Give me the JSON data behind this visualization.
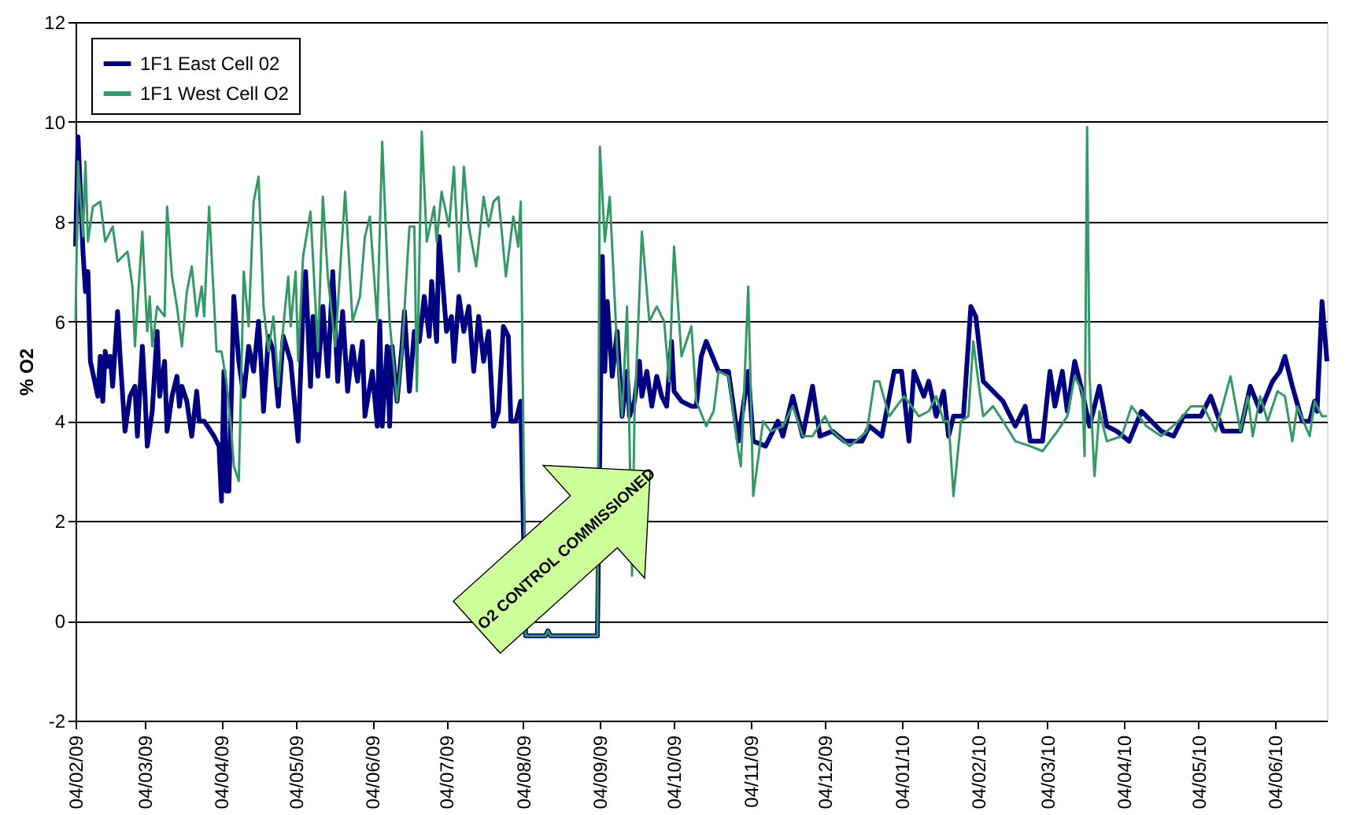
{
  "chart_data": {
    "type": "line",
    "ylabel": "% O2",
    "legend": "top left",
    "grid": "y",
    "line_style": "solid",
    "marker": "none",
    "xlim": [
      "2009-02-04",
      "2010-06-25"
    ],
    "xticks": [
      {
        "value": "2009-02-04",
        "label": "04/02/09"
      },
      {
        "value": "2009-03-04",
        "label": "04/03/09"
      },
      {
        "value": "2009-04-04",
        "label": "04/04/09"
      },
      {
        "value": "2009-05-04",
        "label": "04/05/09"
      },
      {
        "value": "2009-06-04",
        "label": "04/06/09"
      },
      {
        "value": "2009-07-04",
        "label": "04/07/09"
      },
      {
        "value": "2009-08-04",
        "label": "04/08/09"
      },
      {
        "value": "2009-09-04",
        "label": "04/09/09"
      },
      {
        "value": "2009-10-04",
        "label": "04/10/09"
      },
      {
        "value": "2009-11-04",
        "label": "04/11/09"
      },
      {
        "value": "2009-12-04",
        "label": "04/12/09"
      },
      {
        "value": "2010-01-04",
        "label": "04/01/10"
      },
      {
        "value": "2010-02-04",
        "label": "04/02/10"
      },
      {
        "value": "2010-03-04",
        "label": "04/03/10"
      },
      {
        "value": "2010-04-04",
        "label": "04/04/10"
      },
      {
        "value": "2010-05-04",
        "label": "04/05/10"
      },
      {
        "value": "2010-06-04",
        "label": "04/06/10"
      }
    ],
    "ylim": [
      -2,
      12
    ],
    "yticks": [
      -2,
      0,
      2,
      4,
      6,
      8,
      10,
      12
    ],
    "annotations": [
      "O2 CONTROL COMMISSIONED"
    ],
    "series": [
      {
        "name": "1F1 East Cell 02",
        "color": "#000080",
        "x": [
          "2009-02-04",
          "2009-02-05",
          "2009-02-07",
          "2009-02-08",
          "2009-02-09",
          "2009-02-10",
          "2009-02-13",
          "2009-02-14",
          "2009-02-15",
          "2009-02-16",
          "2009-02-17",
          "2009-02-18",
          "2009-02-19",
          "2009-02-21",
          "2009-02-22",
          "2009-02-24",
          "2009-02-26",
          "2009-02-28",
          "2009-03-01",
          "2009-03-03",
          "2009-03-04",
          "2009-03-05",
          "2009-03-07",
          "2009-03-09",
          "2009-03-10",
          "2009-03-12",
          "2009-03-13",
          "2009-03-15",
          "2009-03-17",
          "2009-03-18",
          "2009-03-19",
          "2009-03-21",
          "2009-03-23",
          "2009-03-25",
          "2009-03-26",
          "2009-03-28",
          "2009-04-01",
          "2009-04-03",
          "2009-04-04",
          "2009-04-05",
          "2009-04-06",
          "2009-04-07",
          "2009-04-08",
          "2009-04-09",
          "2009-04-11",
          "2009-04-13",
          "2009-04-15",
          "2009-04-17",
          "2009-04-19",
          "2009-04-20",
          "2009-04-21",
          "2009-04-23",
          "2009-04-25",
          "2009-04-27",
          "2009-04-29",
          "2009-05-02",
          "2009-05-05",
          "2009-05-07",
          "2009-05-08",
          "2009-05-10",
          "2009-05-11",
          "2009-05-13",
          "2009-05-15",
          "2009-05-17",
          "2009-05-19",
          "2009-05-21",
          "2009-05-23",
          "2009-05-25",
          "2009-05-27",
          "2009-05-29",
          "2009-05-31",
          "2009-06-01",
          "2009-06-04",
          "2009-06-06",
          "2009-06-07",
          "2009-06-08",
          "2009-06-10",
          "2009-06-11",
          "2009-06-12",
          "2009-06-14",
          "2009-06-16",
          "2009-06-17",
          "2009-06-19",
          "2009-06-21",
          "2009-06-23",
          "2009-06-25",
          "2009-06-27",
          "2009-06-28",
          "2009-06-30",
          "2009-07-01",
          "2009-07-04",
          "2009-07-06",
          "2009-07-07",
          "2009-07-09",
          "2009-07-11",
          "2009-07-13",
          "2009-07-15",
          "2009-07-17",
          "2009-07-19",
          "2009-07-21",
          "2009-07-23",
          "2009-07-25",
          "2009-07-27",
          "2009-07-29",
          "2009-07-30",
          "2009-08-01",
          "2009-08-03",
          "2009-08-05",
          "2009-08-13",
          "2009-08-14",
          "2009-08-15",
          "2009-09-03",
          "2009-09-05",
          "2009-09-06",
          "2009-09-07",
          "2009-09-09",
          "2009-09-11",
          "2009-09-13",
          "2009-09-15",
          "2009-09-16",
          "2009-09-18",
          "2009-09-20",
          "2009-09-21",
          "2009-09-23",
          "2009-09-25",
          "2009-09-27",
          "2009-09-29",
          "2009-10-01",
          "2009-10-03",
          "2009-10-04",
          "2009-10-07",
          "2009-10-11",
          "2009-10-13",
          "2009-10-15",
          "2009-10-17",
          "2009-10-22",
          "2009-10-26",
          "2009-10-30",
          "2009-11-01",
          "2009-11-03",
          "2009-11-05",
          "2009-11-10",
          "2009-11-15",
          "2009-11-17",
          "2009-11-21",
          "2009-11-25",
          "2009-11-29",
          "2009-12-02",
          "2009-12-07",
          "2009-12-12",
          "2009-12-19",
          "2009-12-22",
          "2009-12-27",
          "2010-01-01",
          "2010-01-04",
          "2010-01-07",
          "2010-01-09",
          "2010-01-13",
          "2010-01-15",
          "2010-01-18",
          "2010-01-21",
          "2010-01-23",
          "2010-01-25",
          "2010-01-29",
          "2010-02-01",
          "2010-02-03",
          "2010-02-06",
          "2010-02-10",
          "2010-02-14",
          "2010-02-19",
          "2010-02-23",
          "2010-02-25",
          "2010-03-02",
          "2010-03-05",
          "2010-03-07",
          "2010-03-10",
          "2010-03-12",
          "2010-03-15",
          "2010-03-18",
          "2010-03-21",
          "2010-03-25",
          "2010-03-28",
          "2010-04-01",
          "2010-04-06",
          "2010-04-11",
          "2010-04-15",
          "2010-04-19",
          "2010-04-24",
          "2010-04-28",
          "2010-05-05",
          "2010-05-09",
          "2010-05-14",
          "2010-05-21",
          "2010-05-25",
          "2010-05-29",
          "2010-06-03",
          "2010-06-06",
          "2010-06-08",
          "2010-06-11",
          "2010-06-15",
          "2010-06-18",
          "2010-06-20",
          "2010-06-21",
          "2010-06-23",
          "2010-06-25"
        ],
        "values": [
          7.5,
          9.7,
          7.4,
          6.6,
          7.0,
          5.2,
          4.5,
          5.3,
          4.4,
          5.4,
          5.1,
          5.3,
          4.7,
          6.2,
          5.3,
          3.8,
          4.5,
          4.7,
          3.7,
          5.5,
          4.6,
          3.5,
          4.2,
          5.8,
          4.5,
          5.2,
          3.8,
          4.5,
          4.9,
          4.3,
          4.7,
          4.4,
          3.7,
          4.6,
          4.0,
          4.0,
          3.7,
          3.5,
          2.4,
          5.0,
          2.6,
          2.6,
          4.5,
          6.5,
          5.2,
          4.5,
          5.5,
          5.0,
          6.0,
          5.2,
          4.2,
          5.7,
          5.4,
          4.3,
          5.7,
          5.2,
          3.6,
          6.3,
          7.0,
          4.7,
          6.1,
          4.9,
          6.3,
          4.9,
          7.0,
          4.8,
          6.2,
          4.6,
          5.5,
          4.8,
          5.6,
          4.1,
          5.0,
          3.9,
          6.0,
          3.9,
          5.5,
          3.9,
          5.5,
          4.4,
          5.5,
          6.2,
          4.6,
          5.8,
          5.6,
          6.5,
          5.7,
          6.8,
          5.6,
          7.7,
          5.8,
          6.1,
          5.2,
          6.5,
          5.8,
          6.3,
          5.0,
          6.1,
          5.2,
          5.8,
          3.9,
          4.2,
          5.9,
          5.7,
          4.0,
          4.0,
          4.4,
          -0.3,
          -0.3,
          -0.2,
          -0.3,
          -0.3,
          7.3,
          5.0,
          6.4,
          4.9,
          5.8,
          4.1,
          5.0,
          4.1,
          4.4,
          5.2,
          4.5,
          5.0,
          4.3,
          4.9,
          4.5,
          4.3,
          5.6,
          4.6,
          4.4,
          4.3,
          4.3,
          5.3,
          5.6,
          5.0,
          5.0,
          3.6,
          4.3,
          5.0,
          3.6,
          3.5,
          4.0,
          3.7,
          4.5,
          3.7,
          4.7,
          3.7,
          3.8,
          3.6,
          3.6,
          3.9,
          3.7,
          5.0,
          5.0,
          3.6,
          5.0,
          4.5,
          4.8,
          4.1,
          4.6,
          3.7,
          4.1,
          4.1,
          6.3,
          6.1,
          4.8,
          4.6,
          4.4,
          3.9,
          4.3,
          3.6,
          3.6,
          5.0,
          4.3,
          5.0,
          4.2,
          5.2,
          4.6,
          3.9,
          4.7,
          3.9,
          3.8,
          3.6,
          4.2,
          4.0,
          3.8,
          3.7,
          4.1,
          4.1,
          4.5,
          3.8,
          3.8,
          4.7,
          4.2,
          4.8,
          5.0,
          5.3,
          4.7,
          4.0,
          4.0,
          4.4,
          4.2,
          6.4,
          5.2
        ]
      },
      {
        "name": "1F1 West Cell O2",
        "color": "#339966",
        "x": [
          "2009-02-04",
          "2009-02-05",
          "2009-02-07",
          "2009-02-08",
          "2009-02-09",
          "2009-02-11",
          "2009-02-14",
          "2009-02-16",
          "2009-02-19",
          "2009-02-21",
          "2009-02-25",
          "2009-02-27",
          "2009-02-28",
          "2009-03-01",
          "2009-03-03",
          "2009-03-05",
          "2009-03-06",
          "2009-03-07",
          "2009-03-09",
          "2009-03-12",
          "2009-03-13",
          "2009-03-15",
          "2009-03-17",
          "2009-03-19",
          "2009-03-21",
          "2009-03-23",
          "2009-03-25",
          "2009-03-27",
          "2009-03-28",
          "2009-03-30",
          "2009-04-02",
          "2009-04-04",
          "2009-04-06",
          "2009-04-08",
          "2009-04-09",
          "2009-04-11",
          "2009-04-13",
          "2009-04-15",
          "2009-04-17",
          "2009-04-19",
          "2009-04-21",
          "2009-04-23",
          "2009-04-25",
          "2009-04-27",
          "2009-04-29",
          "2009-05-01",
          "2009-05-02",
          "2009-05-04",
          "2009-05-05",
          "2009-05-07",
          "2009-05-10",
          "2009-05-13",
          "2009-05-15",
          "2009-05-17",
          "2009-05-20",
          "2009-05-24",
          "2009-05-27",
          "2009-05-30",
          "2009-06-01",
          "2009-06-03",
          "2009-06-06",
          "2009-06-08",
          "2009-06-11",
          "2009-06-14",
          "2009-06-16",
          "2009-06-19",
          "2009-06-21",
          "2009-06-22",
          "2009-06-24",
          "2009-06-26",
          "2009-06-29",
          "2009-06-30",
          "2009-07-02",
          "2009-07-05",
          "2009-07-07",
          "2009-07-09",
          "2009-07-11",
          "2009-07-13",
          "2009-07-16",
          "2009-07-19",
          "2009-07-21",
          "2009-07-23",
          "2009-07-25",
          "2009-07-28",
          "2009-07-31",
          "2009-08-02",
          "2009-08-03",
          "2009-08-05",
          "2009-08-13",
          "2009-08-14",
          "2009-08-15",
          "2009-09-03",
          "2009-09-04",
          "2009-09-06",
          "2009-09-08",
          "2009-09-11",
          "2009-09-13",
          "2009-09-15",
          "2009-09-17",
          "2009-09-18",
          "2009-09-21",
          "2009-09-24",
          "2009-09-27",
          "2009-09-30",
          "2009-10-02",
          "2009-10-04",
          "2009-10-07",
          "2009-10-11",
          "2009-10-13",
          "2009-10-17",
          "2009-10-20",
          "2009-10-22",
          "2009-10-26",
          "2009-10-30",
          "2009-10-31",
          "2009-11-01",
          "2009-11-03",
          "2009-11-05",
          "2009-11-09",
          "2009-11-12",
          "2009-11-17",
          "2009-11-21",
          "2009-11-25",
          "2009-11-29",
          "2009-12-04",
          "2009-12-07",
          "2009-12-14",
          "2009-12-21",
          "2009-12-24",
          "2009-12-26",
          "2009-12-30",
          "2010-01-05",
          "2010-01-11",
          "2010-01-15",
          "2010-01-18",
          "2010-01-21",
          "2010-01-23",
          "2010-01-25",
          "2010-01-28",
          "2010-01-31",
          "2010-02-02",
          "2010-02-04",
          "2010-02-06",
          "2010-02-10",
          "2010-02-14",
          "2010-02-19",
          "2010-02-25",
          "2010-03-02",
          "2010-03-08",
          "2010-03-12",
          "2010-03-15",
          "2010-03-18",
          "2010-03-19",
          "2010-03-20",
          "2010-03-21",
          "2010-03-23",
          "2010-03-25",
          "2010-03-28",
          "2010-04-03",
          "2010-04-07",
          "2010-04-13",
          "2010-04-19",
          "2010-04-26",
          "2010-05-01",
          "2010-05-06",
          "2010-05-11",
          "2010-05-17",
          "2010-05-21",
          "2010-05-24",
          "2010-05-26",
          "2010-05-29",
          "2010-06-01",
          "2010-06-05",
          "2010-06-08",
          "2010-06-11",
          "2010-06-13",
          "2010-06-18",
          "2010-06-20",
          "2010-06-23",
          "2010-06-25"
        ],
        "values": [
          6.0,
          9.2,
          7.7,
          9.2,
          7.6,
          8.3,
          8.4,
          7.6,
          7.9,
          7.2,
          7.4,
          6.7,
          5.5,
          6.3,
          7.8,
          5.8,
          6.5,
          5.5,
          6.3,
          6.1,
          8.3,
          6.9,
          6.3,
          5.5,
          6.6,
          7.1,
          6.1,
          6.7,
          6.1,
          8.3,
          5.4,
          5.4,
          4.8,
          3.8,
          3.1,
          2.8,
          7.0,
          5.9,
          8.4,
          8.9,
          6.3,
          5.4,
          6.1,
          4.7,
          5.9,
          6.9,
          5.9,
          7.0,
          5.2,
          7.3,
          8.2,
          5.4,
          8.5,
          6.9,
          5.5,
          8.6,
          6.0,
          6.5,
          7.7,
          8.1,
          6.0,
          9.6,
          6.0,
          4.4,
          5.4,
          7.9,
          7.9,
          4.6,
          9.8,
          7.6,
          8.3,
          7.6,
          8.6,
          7.9,
          9.1,
          7.0,
          9.1,
          7.9,
          7.1,
          8.5,
          7.9,
          8.4,
          8.5,
          6.9,
          8.1,
          7.5,
          8.4,
          -0.3,
          -0.3,
          -0.2,
          -0.3,
          -0.3,
          9.5,
          7.6,
          8.5,
          5.4,
          4.1,
          6.3,
          0.9,
          4.1,
          7.8,
          6.0,
          6.3,
          6.0,
          4.8,
          7.5,
          5.3,
          5.9,
          4.4,
          3.9,
          4.2,
          5.0,
          4.9,
          3.4,
          3.1,
          4.2,
          6.7,
          2.5,
          4.0,
          3.8,
          3.9,
          4.3,
          3.7,
          3.7,
          4.1,
          3.8,
          3.5,
          3.8,
          4.8,
          4.8,
          4.1,
          4.5,
          4.1,
          4.2,
          4.5,
          4.0,
          4.0,
          2.5,
          4.0,
          4.1,
          5.6,
          4.8,
          4.1,
          4.3,
          4.0,
          3.6,
          3.5,
          3.4,
          3.8,
          4.1,
          4.9,
          4.6,
          3.3,
          9.9,
          4.9,
          2.9,
          4.2,
          3.6,
          3.7,
          4.3,
          3.9,
          3.7,
          4.0,
          4.3,
          4.3,
          3.8,
          4.9,
          3.8,
          4.5,
          3.7,
          4.5,
          4.0,
          4.6,
          4.5,
          3.6,
          4.3,
          3.7,
          4.4,
          4.1,
          4.1
        ]
      }
    ]
  }
}
